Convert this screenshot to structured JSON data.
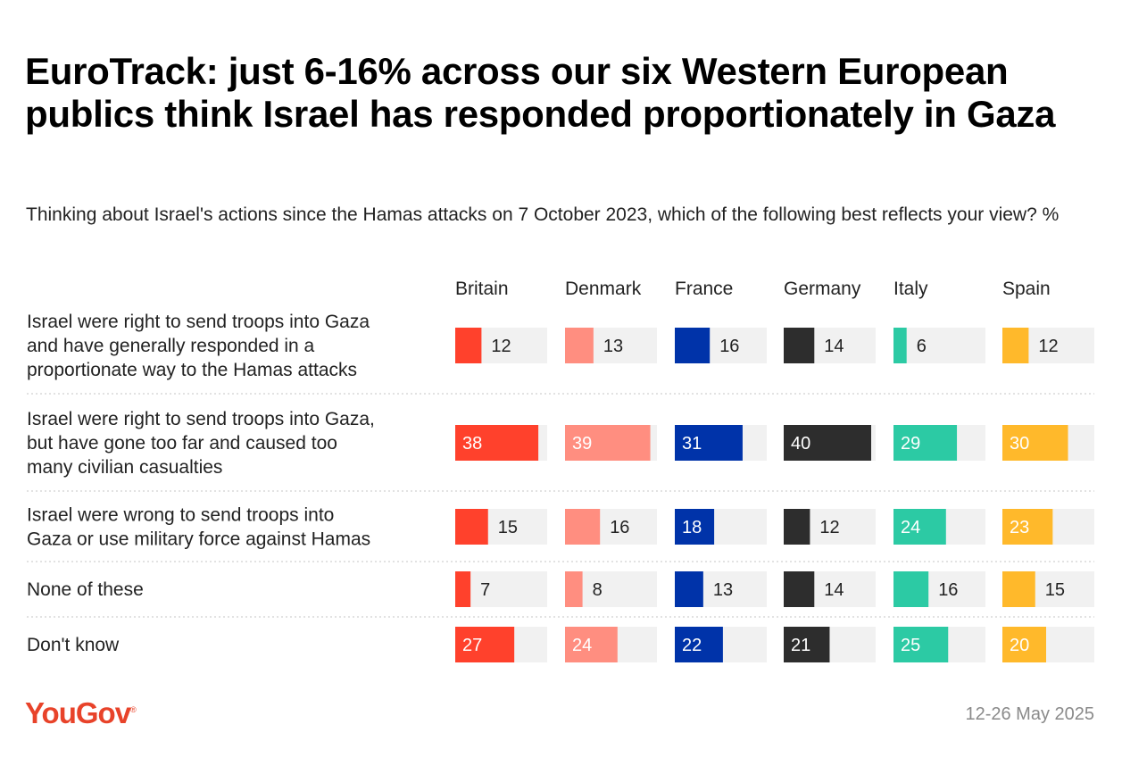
{
  "title": "EuroTrack: just 6-16% across our six Western European publics think Israel has responded proportionately in Gaza",
  "subtitle": "Thinking about Israel's actions since the Hamas attacks on 7 October 2023, which of the following best reflects your view? %",
  "footer": {
    "logo": "YouGov",
    "date": "12-26 May 2025"
  },
  "colors": {
    "Britain": "#ff412c",
    "Denmark": "#ff8e80",
    "France": "#0033a9",
    "Germany": "#2d2d2d",
    "Italy": "#2ccaa4",
    "Spain": "#ffb92b",
    "track": "#f1f1f1"
  },
  "chart_data": {
    "type": "bar",
    "unit": "%",
    "max": 40,
    "countries": [
      "Britain",
      "Denmark",
      "France",
      "Germany",
      "Italy",
      "Spain"
    ],
    "rows": [
      {
        "label": "Israel were right to send troops into Gaza and have generally responded in a proportionate way to the Hamas attacks",
        "values": [
          12,
          13,
          16,
          14,
          6,
          12
        ]
      },
      {
        "label": "Israel were right to send troops into Gaza, but have gone too far and caused too many civilian casualties",
        "values": [
          38,
          39,
          31,
          40,
          29,
          30
        ]
      },
      {
        "label": "Israel were wrong to send troops into Gaza or use military force against Hamas",
        "values": [
          15,
          16,
          18,
          12,
          24,
          23
        ]
      },
      {
        "label": "None of these",
        "values": [
          7,
          8,
          13,
          14,
          16,
          15
        ]
      },
      {
        "label": "Don't know",
        "values": [
          27,
          24,
          22,
          21,
          25,
          20
        ]
      }
    ]
  }
}
